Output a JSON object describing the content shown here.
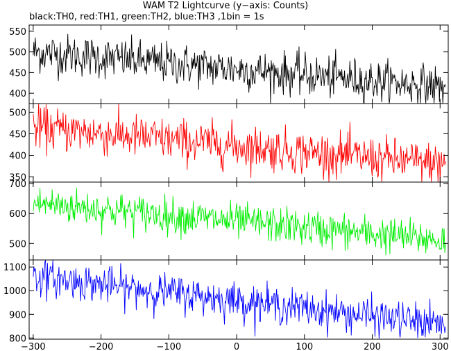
{
  "title": "WAM T2 Lightcurve (y−axis: Counts)",
  "subtitle": "black:TH0, red:TH1, green:TH2, blue:TH3 ,1bin = 1s",
  "chart_data": {
    "type": "line",
    "x_range": [
      -306,
      312
    ],
    "x_ticks": [
      -300,
      -200,
      -100,
      0,
      100,
      200,
      300
    ],
    "x_step": 1,
    "series": [
      {
        "name": "TH0",
        "color": "#000000",
        "ylim": [
          375,
          565
        ],
        "yticks": [
          400,
          450,
          500,
          550
        ],
        "start_mean": 500,
        "end_mean": 415,
        "noise": 25
      },
      {
        "name": "TH1",
        "color": "#ff0000",
        "ylim": [
          338,
          520
        ],
        "yticks": [
          350,
          400,
          450,
          500
        ],
        "start_mean": 465,
        "end_mean": 378,
        "noise": 25
      },
      {
        "name": "TH2",
        "color": "#00ee00",
        "ylim": [
          445,
          705
        ],
        "yticks": [
          500,
          600,
          700
        ],
        "start_mean": 635,
        "end_mean": 510,
        "noise": 30
      },
      {
        "name": "TH3",
        "color": "#0000ff",
        "ylim": [
          795,
          1130
        ],
        "yticks": [
          800,
          900,
          1000,
          1100
        ],
        "start_mean": 1060,
        "end_mean": 855,
        "noise": 38
      }
    ]
  }
}
